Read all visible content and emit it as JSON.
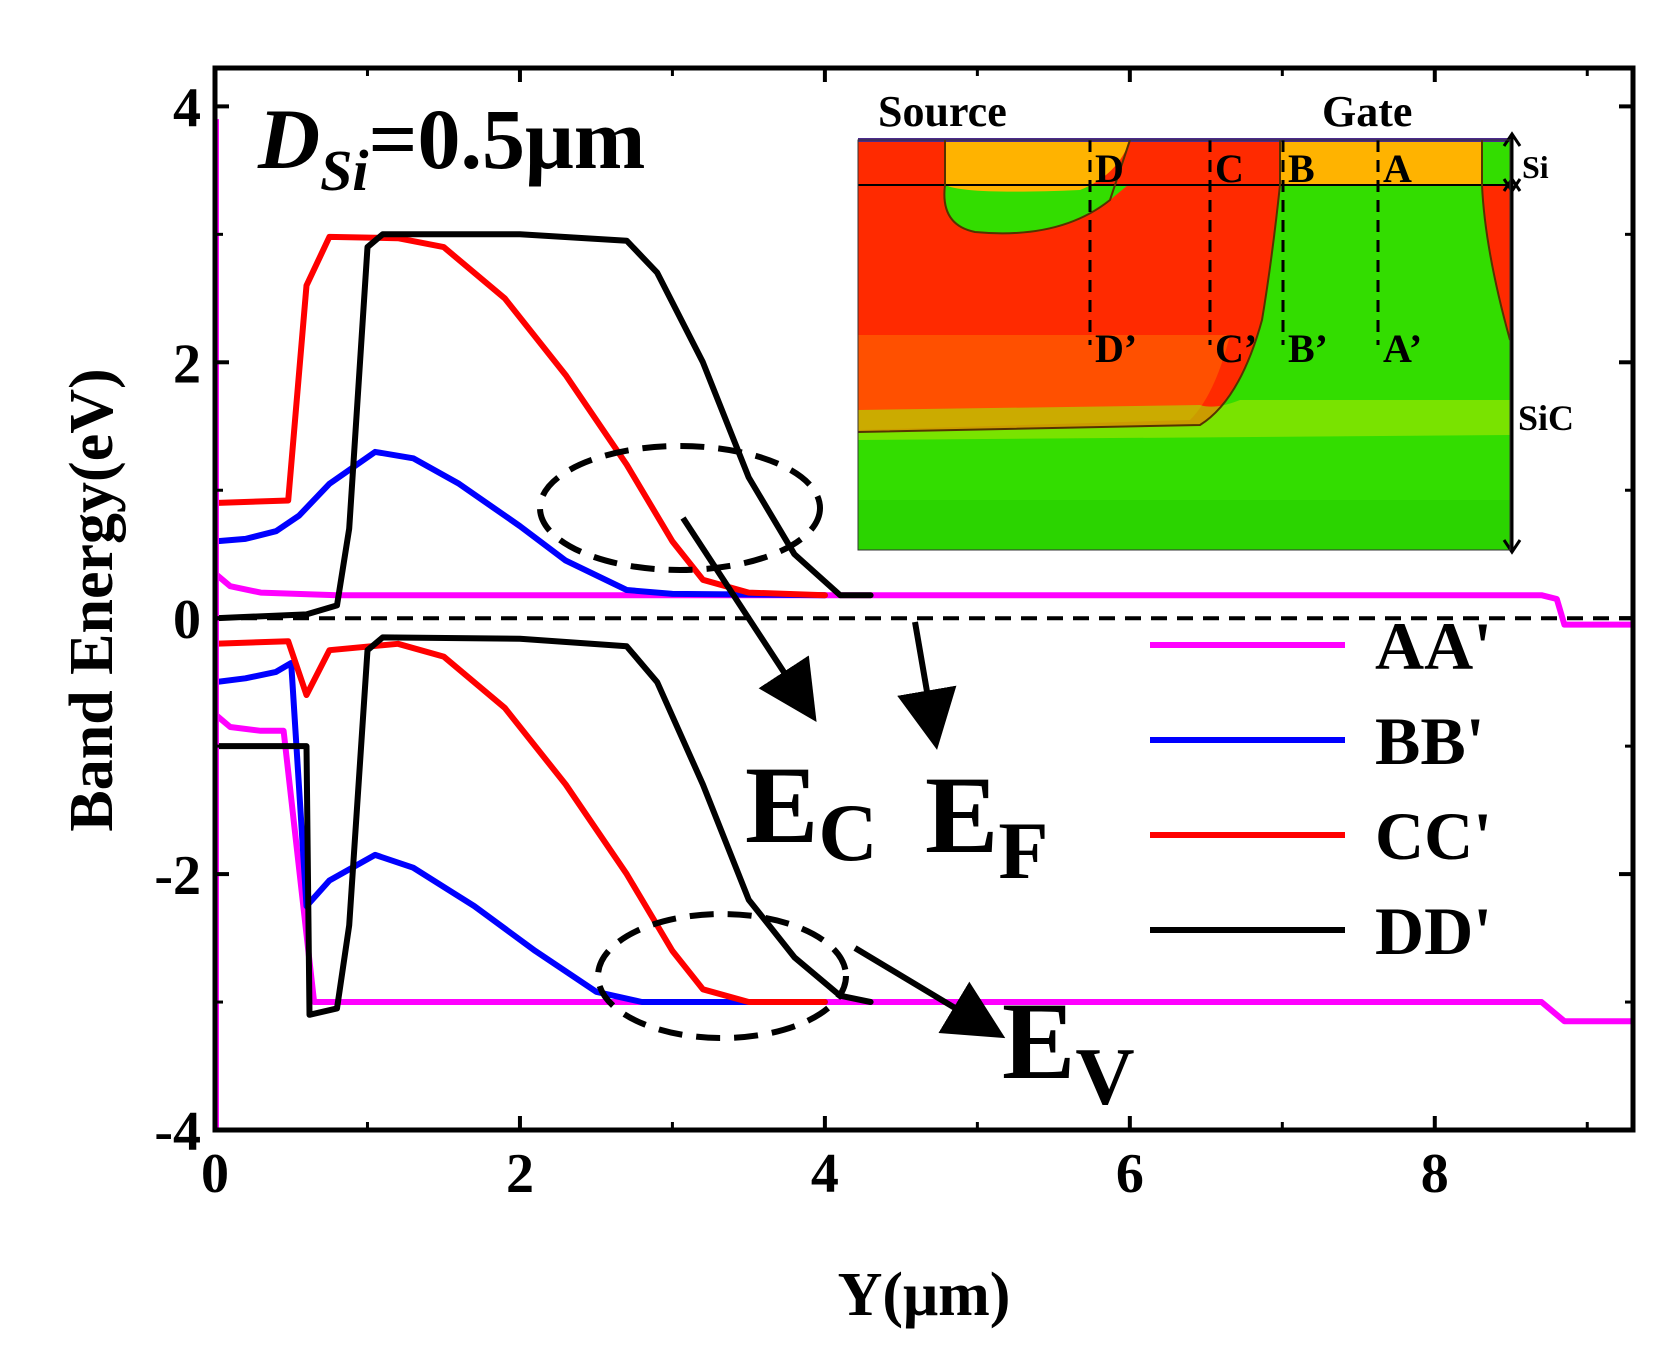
{
  "chart_data": {
    "type": "line",
    "title": "",
    "panel_label": {
      "prefix": "D",
      "subscript": "Si",
      "suffix": "=0.5μm"
    },
    "xlabel": "Y(μm)",
    "ylabel": "Band Energy(eV)",
    "xlim": [
      0,
      9.3
    ],
    "ylim": [
      -4,
      4.3
    ],
    "xticks": [
      0,
      2,
      4,
      6,
      8
    ],
    "xtick_labels": [
      "0",
      "2",
      "4",
      "6",
      "8"
    ],
    "yticks": [
      -4,
      -2,
      0,
      2,
      4
    ],
    "ytick_labels": [
      "-4",
      "-2",
      "0",
      "2",
      "4"
    ],
    "grid": false,
    "legend_position": "lower-right",
    "fermi_level": 0,
    "series": [
      {
        "name": "AA'",
        "color": "#ff00ff",
        "ec": [
          [
            0,
            0.35
          ],
          [
            0.1,
            0.25
          ],
          [
            0.3,
            0.2
          ],
          [
            0.8,
            0.18
          ],
          [
            2,
            0.18
          ],
          [
            4,
            0.18
          ],
          [
            6,
            0.18
          ],
          [
            8.7,
            0.18
          ],
          [
            8.8,
            0.15
          ],
          [
            8.85,
            -0.05
          ],
          [
            9.3,
            -0.05
          ]
        ],
        "ev": [
          [
            0,
            -0.75
          ],
          [
            0.1,
            -0.85
          ],
          [
            0.3,
            -0.88
          ],
          [
            0.45,
            -0.88
          ],
          [
            0.65,
            -3.0
          ],
          [
            2,
            -3.0
          ],
          [
            4,
            -3.0
          ],
          [
            6,
            -3.0
          ],
          [
            8.7,
            -3.0
          ],
          [
            8.85,
            -3.15
          ],
          [
            9.3,
            -3.15
          ]
        ]
      },
      {
        "name": "BB'",
        "color": "#0000ff",
        "ec": [
          [
            0,
            0.6
          ],
          [
            0.2,
            0.62
          ],
          [
            0.4,
            0.68
          ],
          [
            0.55,
            0.8
          ],
          [
            0.75,
            1.05
          ],
          [
            1.05,
            1.3
          ],
          [
            1.3,
            1.25
          ],
          [
            1.6,
            1.05
          ],
          [
            2,
            0.72
          ],
          [
            2.3,
            0.45
          ],
          [
            2.7,
            0.22
          ],
          [
            3,
            0.19
          ],
          [
            4,
            0.18
          ]
        ],
        "ev": [
          [
            0,
            -0.5
          ],
          [
            0.2,
            -0.47
          ],
          [
            0.4,
            -0.42
          ],
          [
            0.5,
            -0.35
          ],
          [
            0.6,
            -2.25
          ],
          [
            0.75,
            -2.05
          ],
          [
            1.05,
            -1.85
          ],
          [
            1.3,
            -1.95
          ],
          [
            1.7,
            -2.25
          ],
          [
            2.1,
            -2.6
          ],
          [
            2.5,
            -2.92
          ],
          [
            2.8,
            -3.0
          ],
          [
            4,
            -3.0
          ]
        ]
      },
      {
        "name": "CC'",
        "color": "#ff0000",
        "ec": [
          [
            0,
            0.9
          ],
          [
            0.48,
            0.92
          ],
          [
            0.6,
            2.6
          ],
          [
            0.75,
            2.98
          ],
          [
            1.2,
            2.97
          ],
          [
            1.5,
            2.9
          ],
          [
            1.9,
            2.5
          ],
          [
            2.3,
            1.9
          ],
          [
            2.7,
            1.2
          ],
          [
            3,
            0.6
          ],
          [
            3.2,
            0.3
          ],
          [
            3.5,
            0.2
          ],
          [
            4,
            0.18
          ]
        ],
        "ev": [
          [
            0,
            -0.2
          ],
          [
            0.48,
            -0.18
          ],
          [
            0.6,
            -0.6
          ],
          [
            0.75,
            -0.25
          ],
          [
            1.2,
            -0.2
          ],
          [
            1.5,
            -0.3
          ],
          [
            1.9,
            -0.7
          ],
          [
            2.3,
            -1.3
          ],
          [
            2.7,
            -2.0
          ],
          [
            3,
            -2.6
          ],
          [
            3.2,
            -2.9
          ],
          [
            3.5,
            -3.0
          ],
          [
            4,
            -3.0
          ]
        ]
      },
      {
        "name": "DD'",
        "color": "#000000",
        "ec": [
          [
            0,
            0.0
          ],
          [
            0.6,
            0.03
          ],
          [
            0.8,
            0.1
          ],
          [
            0.88,
            0.7
          ],
          [
            1.0,
            2.9
          ],
          [
            1.1,
            3.0
          ],
          [
            2,
            3.0
          ],
          [
            2.7,
            2.95
          ],
          [
            2.9,
            2.7
          ],
          [
            3.2,
            2.0
          ],
          [
            3.5,
            1.1
          ],
          [
            3.8,
            0.5
          ],
          [
            4.1,
            0.18
          ],
          [
            4.3,
            0.18
          ]
        ],
        "ev": [
          [
            0,
            -1.0
          ],
          [
            0.6,
            -1.0
          ],
          [
            0.62,
            -3.1
          ],
          [
            0.8,
            -3.05
          ],
          [
            0.88,
            -2.4
          ],
          [
            1.0,
            -0.25
          ],
          [
            1.1,
            -0.15
          ],
          [
            2,
            -0.16
          ],
          [
            2.7,
            -0.22
          ],
          [
            2.9,
            -0.5
          ],
          [
            3.2,
            -1.3
          ],
          [
            3.5,
            -2.2
          ],
          [
            3.8,
            -2.65
          ],
          [
            4.1,
            -2.95
          ],
          [
            4.3,
            -3.0
          ]
        ]
      }
    ],
    "annotations": {
      "ec_label": {
        "main": "E",
        "sub": "C"
      },
      "ef_label": {
        "main": "E",
        "sub": "F"
      },
      "ev_label": {
        "main": "E",
        "sub": "V"
      }
    }
  },
  "inset": {
    "labels": {
      "source": "Source",
      "gate": "Gate",
      "si": "Si",
      "sic": "SiC",
      "cut_top": [
        "D",
        "C",
        "B",
        "A"
      ],
      "cut_bottom": [
        "D’",
        "C’",
        "B’",
        "A’"
      ]
    },
    "colors": {
      "red": "#ff2a00",
      "orange": "#ffb300",
      "green": "#33dd00",
      "light_green": "#7ae800"
    }
  }
}
